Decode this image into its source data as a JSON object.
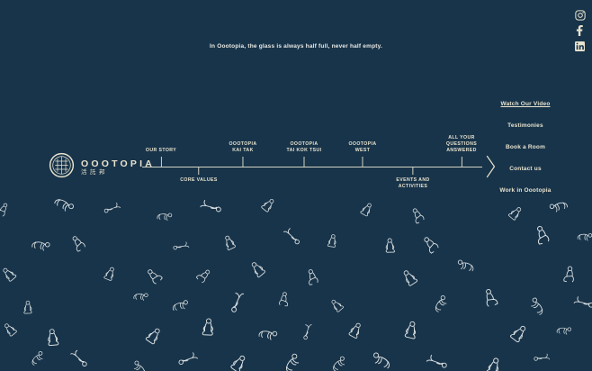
{
  "page": {
    "background_color": "#18344a",
    "accent_color": "#e8e3cf"
  },
  "header": {
    "tagline": "In Oootopia, the glass is always half full, never half empty."
  },
  "social": {
    "items": [
      {
        "name": "Instagram",
        "icon": "instagram-icon"
      },
      {
        "name": "Facebook",
        "icon": "facebook-icon"
      },
      {
        "name": "LinkedIn",
        "icon": "linkedin-icon"
      }
    ]
  },
  "logo": {
    "wordmark": "OOOTOPIA",
    "chinese_name": "活託邦",
    "mark_icon": "oootopia-seal-icon"
  },
  "timeline": {
    "items": [
      {
        "label": "OUR STORY",
        "side": "above"
      },
      {
        "label": "CORE VALUES",
        "side": "below"
      },
      {
        "label": "OOOTOPIA\nKAI TAK",
        "side": "above"
      },
      {
        "label": "OOOTOPIA\nTAI KOK TSUI",
        "side": "above"
      },
      {
        "label": "OOOTOPIA\nWEST",
        "side": "above"
      },
      {
        "label": "EVENTS  AND\nACTIVITIES",
        "side": "below"
      },
      {
        "label": "ALL YOUR\nQUESTIONS\nANSWERED",
        "side": "above"
      }
    ],
    "next_icon": "chevron-right-icon"
  },
  "menu": {
    "items": [
      {
        "label": "Watch Our Video"
      },
      {
        "label": "Testimonies"
      },
      {
        "label": "Book a Room"
      },
      {
        "label": "Contact us"
      },
      {
        "label": "Work in Oootopia"
      }
    ]
  },
  "background_pattern": {
    "description": "scattered outline drawings of floating and sitting people",
    "figure_icon": "floating-person-illustration"
  }
}
